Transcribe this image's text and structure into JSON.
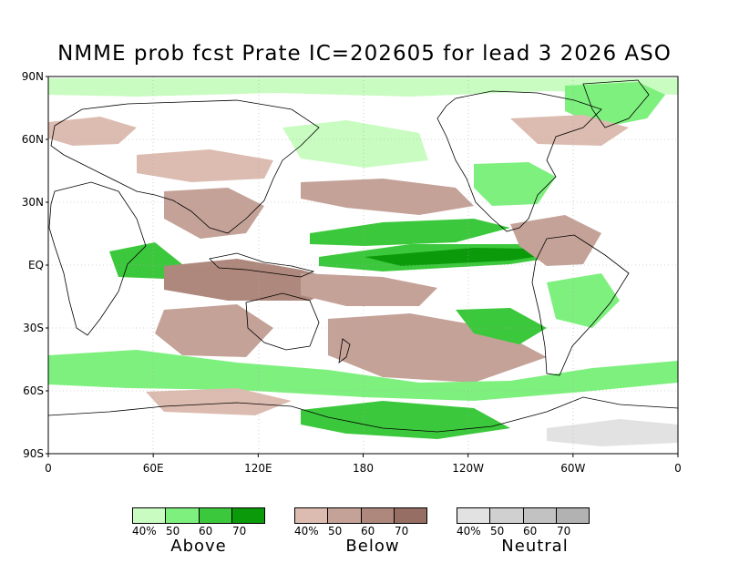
{
  "title": "NMME prob fcst Prate IC=202605 for lead 3 2026 ASO",
  "lat_labels": [
    "90N",
    "60N",
    "30N",
    "EQ",
    "30S",
    "60S",
    "90S"
  ],
  "lon_labels": [
    "0",
    "60E",
    "120E",
    "180",
    "120W",
    "60W",
    "0"
  ],
  "colors": {
    "above": [
      "#c8fcc0",
      "#7ef07e",
      "#3cc83c",
      "#0a9a0a"
    ],
    "below": [
      "#dcbcb0",
      "#c4a298",
      "#ae887c",
      "#966e64"
    ],
    "neutral": [
      "#e2e2e2",
      "#d0d0d0",
      "#c2c2c2",
      "#b2b2b2"
    ],
    "coast": "#000000"
  },
  "legend": {
    "ticks": [
      "40%",
      "50",
      "60",
      "70"
    ],
    "above_label": "Above",
    "below_label": "Below",
    "neutral_label": "Neutral"
  }
}
